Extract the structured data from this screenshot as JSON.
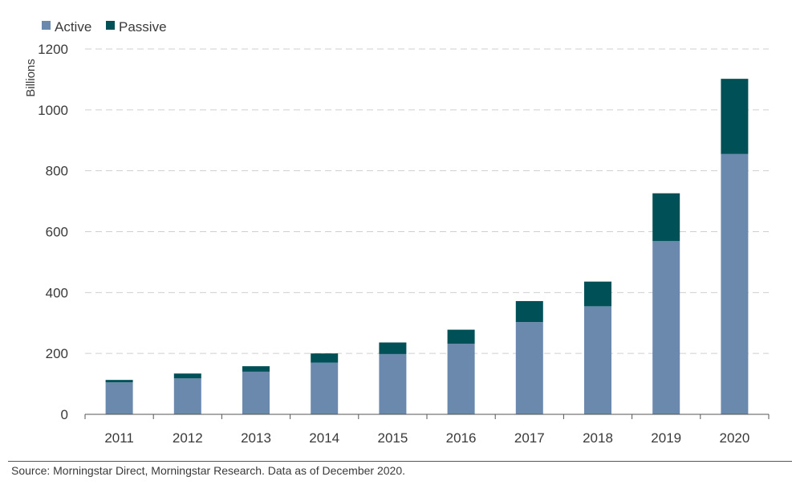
{
  "chart_data": {
    "type": "bar",
    "stacked": true,
    "title": "",
    "xlabel": "",
    "ylabel": "Billions",
    "ylim": [
      0,
      1200
    ],
    "yticks": [
      0,
      200,
      400,
      600,
      800,
      1000,
      1200
    ],
    "grid": true,
    "legend_position": "top-left",
    "categories": [
      "2011",
      "2012",
      "2013",
      "2014",
      "2015",
      "2016",
      "2017",
      "2018",
      "2019",
      "2020"
    ],
    "series": [
      {
        "name": "Active",
        "color": "#6b88ad",
        "values": [
          105,
          118,
          140,
          170,
          198,
          232,
          303,
          355,
          569,
          855
        ]
      },
      {
        "name": "Passive",
        "color": "#005157",
        "values": [
          8,
          16,
          18,
          30,
          38,
          46,
          69,
          81,
          157,
          247
        ]
      }
    ]
  },
  "footer": {
    "source": "Source: Morningstar Direct, Morningstar Research. Data as of December 2020."
  }
}
